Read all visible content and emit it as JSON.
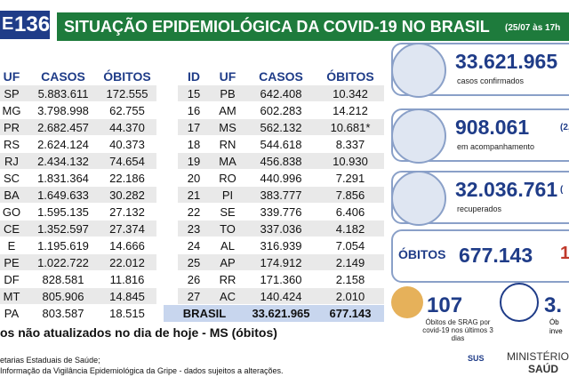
{
  "badge": {
    "prefix": "E",
    "number": "136"
  },
  "header": {
    "title": "SITUAÇÃO EPIDEMIOLÓGICA DA COVID-19 NO BRASIL",
    "date": "(25/07 às 17h"
  },
  "left_table": {
    "columns": [
      "UF",
      "CASOS",
      "ÓBITOS"
    ],
    "rows": [
      [
        "SP",
        "5.883.611",
        "172.555"
      ],
      [
        "MG",
        "3.798.998",
        "62.755"
      ],
      [
        "PR",
        "2.682.457",
        "44.370"
      ],
      [
        "RS",
        "2.624.124",
        "40.373"
      ],
      [
        "RJ",
        "2.434.132",
        "74.654"
      ],
      [
        "SC",
        "1.831.364",
        "22.186"
      ],
      [
        "BA",
        "1.649.633",
        "30.282"
      ],
      [
        "GO",
        "1.595.135",
        "27.132"
      ],
      [
        "CE",
        "1.352.597",
        "27.374"
      ],
      [
        "E",
        "1.195.619",
        "14.666"
      ],
      [
        "PE",
        "1.022.722",
        "22.012"
      ],
      [
        "DF",
        "828.581",
        "11.816"
      ],
      [
        "MT",
        "805.906",
        "14.845"
      ],
      [
        "PA",
        "803.587",
        "18.515"
      ]
    ]
  },
  "right_table": {
    "columns": [
      "ID",
      "UF",
      "CASOS",
      "ÓBITOS"
    ],
    "rows": [
      [
        "15",
        "PB",
        "642.408",
        "10.342"
      ],
      [
        "16",
        "AM",
        "602.283",
        "14.212"
      ],
      [
        "17",
        "MS",
        "562.132",
        "10.681*"
      ],
      [
        "18",
        "RN",
        "544.618",
        "8.337"
      ],
      [
        "19",
        "MA",
        "456.838",
        "10.930"
      ],
      [
        "20",
        "RO",
        "440.996",
        "7.291"
      ],
      [
        "21",
        "PI",
        "383.777",
        "7.856"
      ],
      [
        "22",
        "SE",
        "339.776",
        "6.406"
      ],
      [
        "23",
        "TO",
        "337.036",
        "4.182"
      ],
      [
        "24",
        "AL",
        "316.939",
        "7.054"
      ],
      [
        "25",
        "AP",
        "174.912",
        "2.149"
      ],
      [
        "26",
        "RR",
        "171.360",
        "2.158"
      ],
      [
        "27",
        "AC",
        "140.424",
        "2.010"
      ]
    ],
    "total": [
      "BRASIL",
      "33.621.965",
      "677.143"
    ]
  },
  "cards": [
    {
      "value": "33.621.965",
      "label": "casos confirmados"
    },
    {
      "value": "908.061",
      "label": "em acompanhamento",
      "extra": "(2,"
    },
    {
      "value": "32.036.761",
      "label": "recuperados",
      "extra": "("
    },
    {
      "tag": "ÓBITOS",
      "value": "677.143",
      "extra": "1"
    }
  ],
  "bottom": {
    "srag_value": "107",
    "srag_label": "Óbitos de SRAG por covid-19 nos últimos 3 dias",
    "invest_value": "3.",
    "invest_label": "Ób",
    "invest_label2": "inve"
  },
  "footer": {
    "note": "os não atualizados no dia de hoje - MS (óbitos)",
    "source1": "etarias Estaduais de Saúde;",
    "source2": "Informação da Vigilância Epidemiológica da Gripe - dados sujeitos a alterações.",
    "sus": "SUS",
    "ministry": "MINISTÉRIO D",
    "ministry2": "SAÚD"
  }
}
